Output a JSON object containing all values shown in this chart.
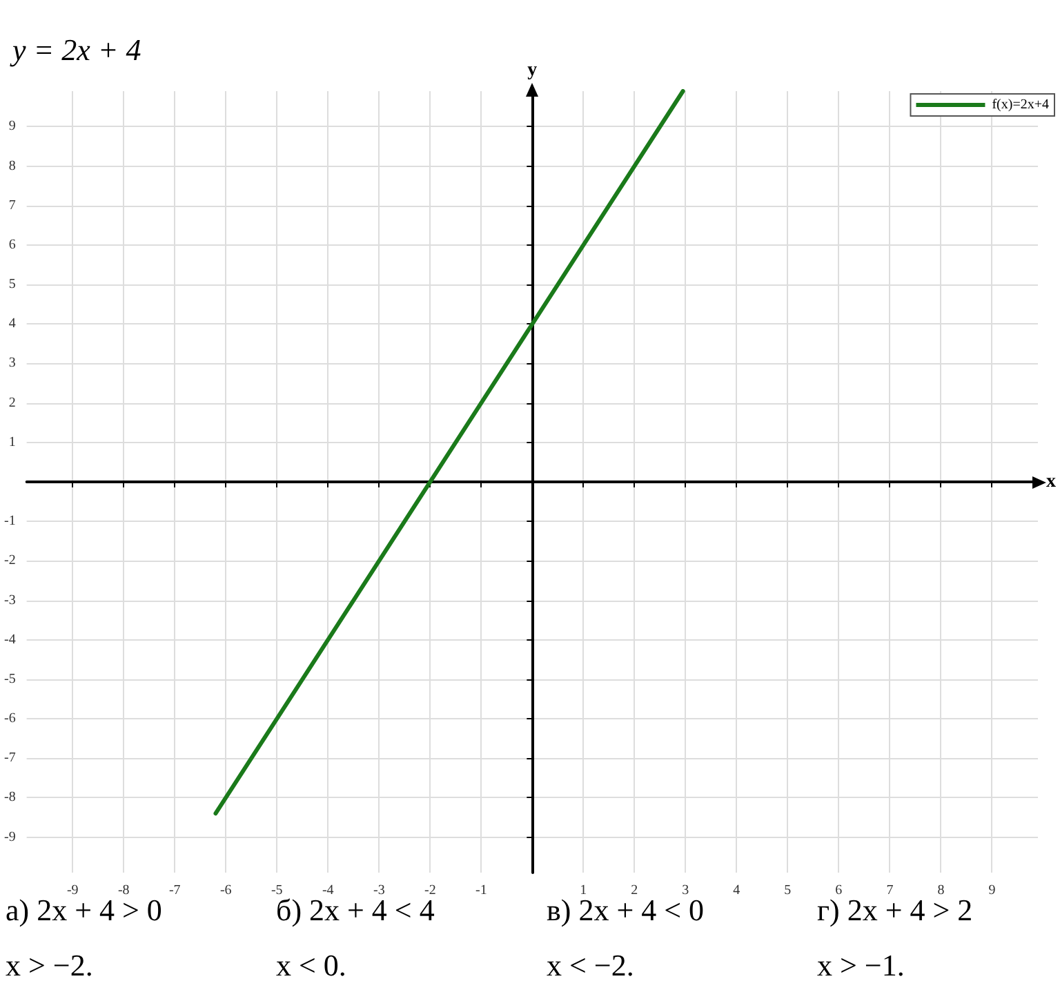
{
  "chart_data": {
    "type": "line",
    "title": "y = 2x + 4",
    "xlabel": "x",
    "ylabel": "y",
    "x": [
      -6.2,
      2.95
    ],
    "series": [
      {
        "name": "f(x)=2x+4",
        "color": "#1a7a1a",
        "values": [
          -8.4,
          9.9
        ]
      }
    ],
    "xlim": [
      -9.9,
      9.9
    ],
    "ylim": [
      -9.9,
      9.9
    ],
    "xticks": [
      -9,
      -8,
      -7,
      -6,
      -5,
      -4,
      -3,
      -2,
      -1,
      1,
      2,
      3,
      4,
      5,
      6,
      7,
      8,
      9
    ],
    "yticks": [
      -9,
      -8,
      -7,
      -6,
      -5,
      -4,
      -3,
      -2,
      -1,
      1,
      2,
      3,
      4,
      5,
      6,
      7,
      8,
      9
    ],
    "grid": true,
    "legend": "top right",
    "marker": "none",
    "line_style": "solid",
    "annotations": [
      "а) 2x + 4 > 0",
      "x > −2.",
      "б) 2x + 4 < 4",
      "x < 0.",
      "в) 2x + 4 < 0",
      "x < −2.",
      "г) 2x + 4 > 2",
      "x > −1."
    ]
  }
}
